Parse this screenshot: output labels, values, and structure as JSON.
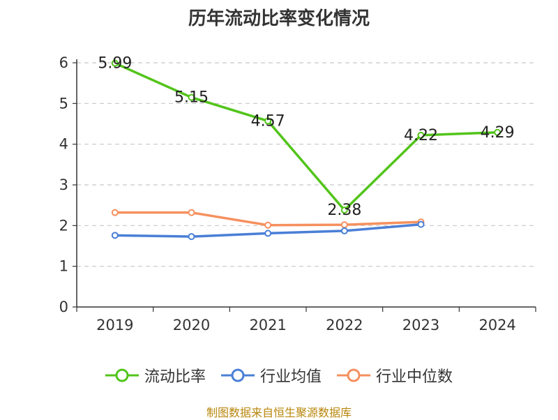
{
  "chart_data": {
    "type": "line",
    "title": "历年流动比率变化情况",
    "categories": [
      "2019",
      "2020",
      "2021",
      "2022",
      "2023",
      "2024"
    ],
    "ylim": [
      0,
      6
    ],
    "yticks": [
      0,
      1,
      2,
      3,
      4,
      5,
      6
    ],
    "grid": true,
    "legend_position": "bottom",
    "series": [
      {
        "name": "流动比率",
        "color": "#52c41a",
        "values": [
          5.99,
          5.15,
          4.57,
          2.38,
          4.22,
          4.29
        ],
        "labels": [
          "5.99",
          "5.15",
          "4.57",
          "2.38",
          "4.22",
          "4.29"
        ],
        "show_labels": true
      },
      {
        "name": "行业均值",
        "color": "#4a7fd6",
        "values": [
          1.76,
          1.73,
          1.81,
          1.87,
          2.03,
          null
        ],
        "show_labels": false
      },
      {
        "name": "行业中位数",
        "color": "#f5905e",
        "values": [
          2.32,
          2.32,
          2.01,
          2.02,
          2.09,
          null
        ],
        "show_labels": false
      }
    ]
  },
  "source_text": "制图数据来自恒生聚源数据库"
}
